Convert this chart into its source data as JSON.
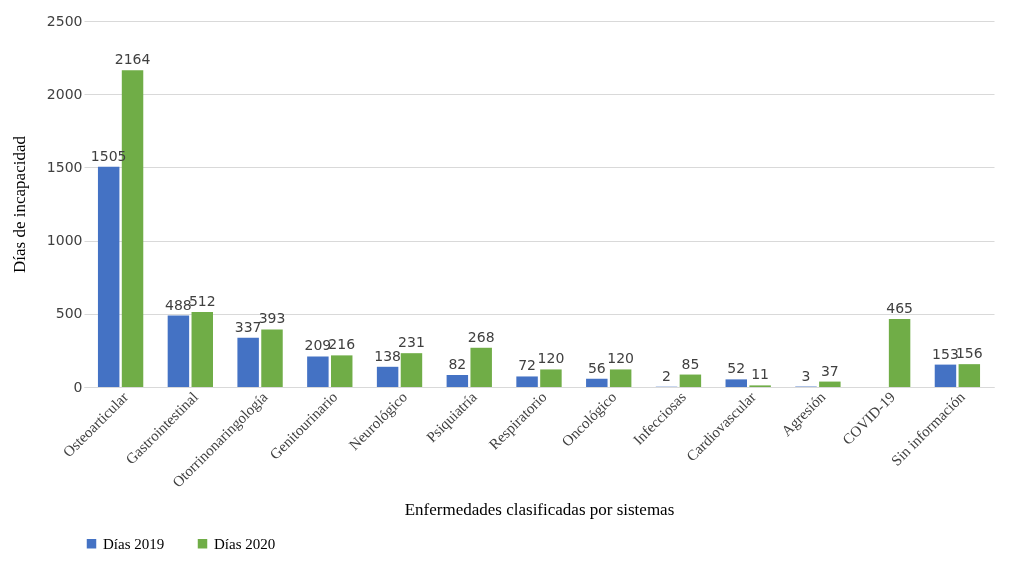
{
  "chart_data": {
    "type": "bar",
    "xlabel": "Enfermedades clasificadas por sistemas",
    "ylabel": "Días de incapacidad",
    "categories": [
      "Osteoarticular",
      "Gastrointestinal",
      "Otorrinonaringología",
      "Genitourinario",
      "Neurológico",
      "Psiquiatría",
      "Respiratorio",
      "Oncológico",
      "Infecciosas",
      "Cardiovascular",
      "Agresión",
      "COVID-19",
      "Sin información"
    ],
    "series": [
      {
        "name": "Días 2019",
        "color": "#4472c4",
        "values": [
          1505,
          488,
          337,
          209,
          138,
          82,
          72,
          56,
          2,
          52,
          3,
          null,
          153
        ]
      },
      {
        "name": "Días 2020",
        "color": "#70ad47",
        "values": [
          2164,
          512,
          393,
          216,
          231,
          268,
          120,
          120,
          85,
          11,
          37,
          465,
          156
        ]
      }
    ],
    "ylim": [
      0,
      2500
    ],
    "yticks": [
      0,
      500,
      1000,
      1500,
      2000,
      2500
    ],
    "grid": "y",
    "legend": "bottom",
    "data_labels": true
  }
}
